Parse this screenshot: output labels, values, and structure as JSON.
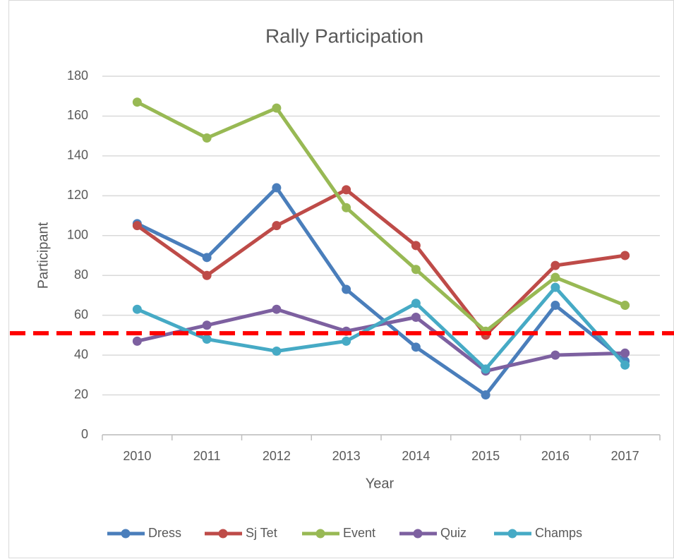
{
  "chart_data": {
    "type": "line",
    "title": "Rally Participation",
    "x_label": "Year",
    "y_label": "Participant",
    "categories": [
      "2010",
      "2011",
      "2012",
      "2013",
      "2014",
      "2015",
      "2016",
      "2017"
    ],
    "series": [
      {
        "name": "Dress",
        "color": "#4a7ebb",
        "values": [
          106,
          89,
          124,
          73,
          44,
          20,
          65,
          37
        ]
      },
      {
        "name": "Sj Tet",
        "color": "#be4b48",
        "values": [
          105,
          80,
          105,
          123,
          95,
          50,
          85,
          90
        ]
      },
      {
        "name": "Event",
        "color": "#98b954",
        "values": [
          167,
          149,
          164,
          114,
          83,
          52,
          79,
          65
        ]
      },
      {
        "name": "Quiz",
        "color": "#7d60a0",
        "values": [
          47,
          55,
          63,
          52,
          59,
          32,
          40,
          41
        ]
      },
      {
        "name": "Champs",
        "color": "#46aac5",
        "values": [
          63,
          48,
          42,
          47,
          66,
          33,
          74,
          35
        ]
      }
    ],
    "ylim": [
      0,
      180
    ],
    "yticks": [
      0,
      20,
      40,
      60,
      80,
      100,
      120,
      140,
      160,
      180
    ],
    "grid": true,
    "legend": "bottom",
    "reference_line": {
      "value": 51,
      "color": "#ff0000"
    }
  }
}
